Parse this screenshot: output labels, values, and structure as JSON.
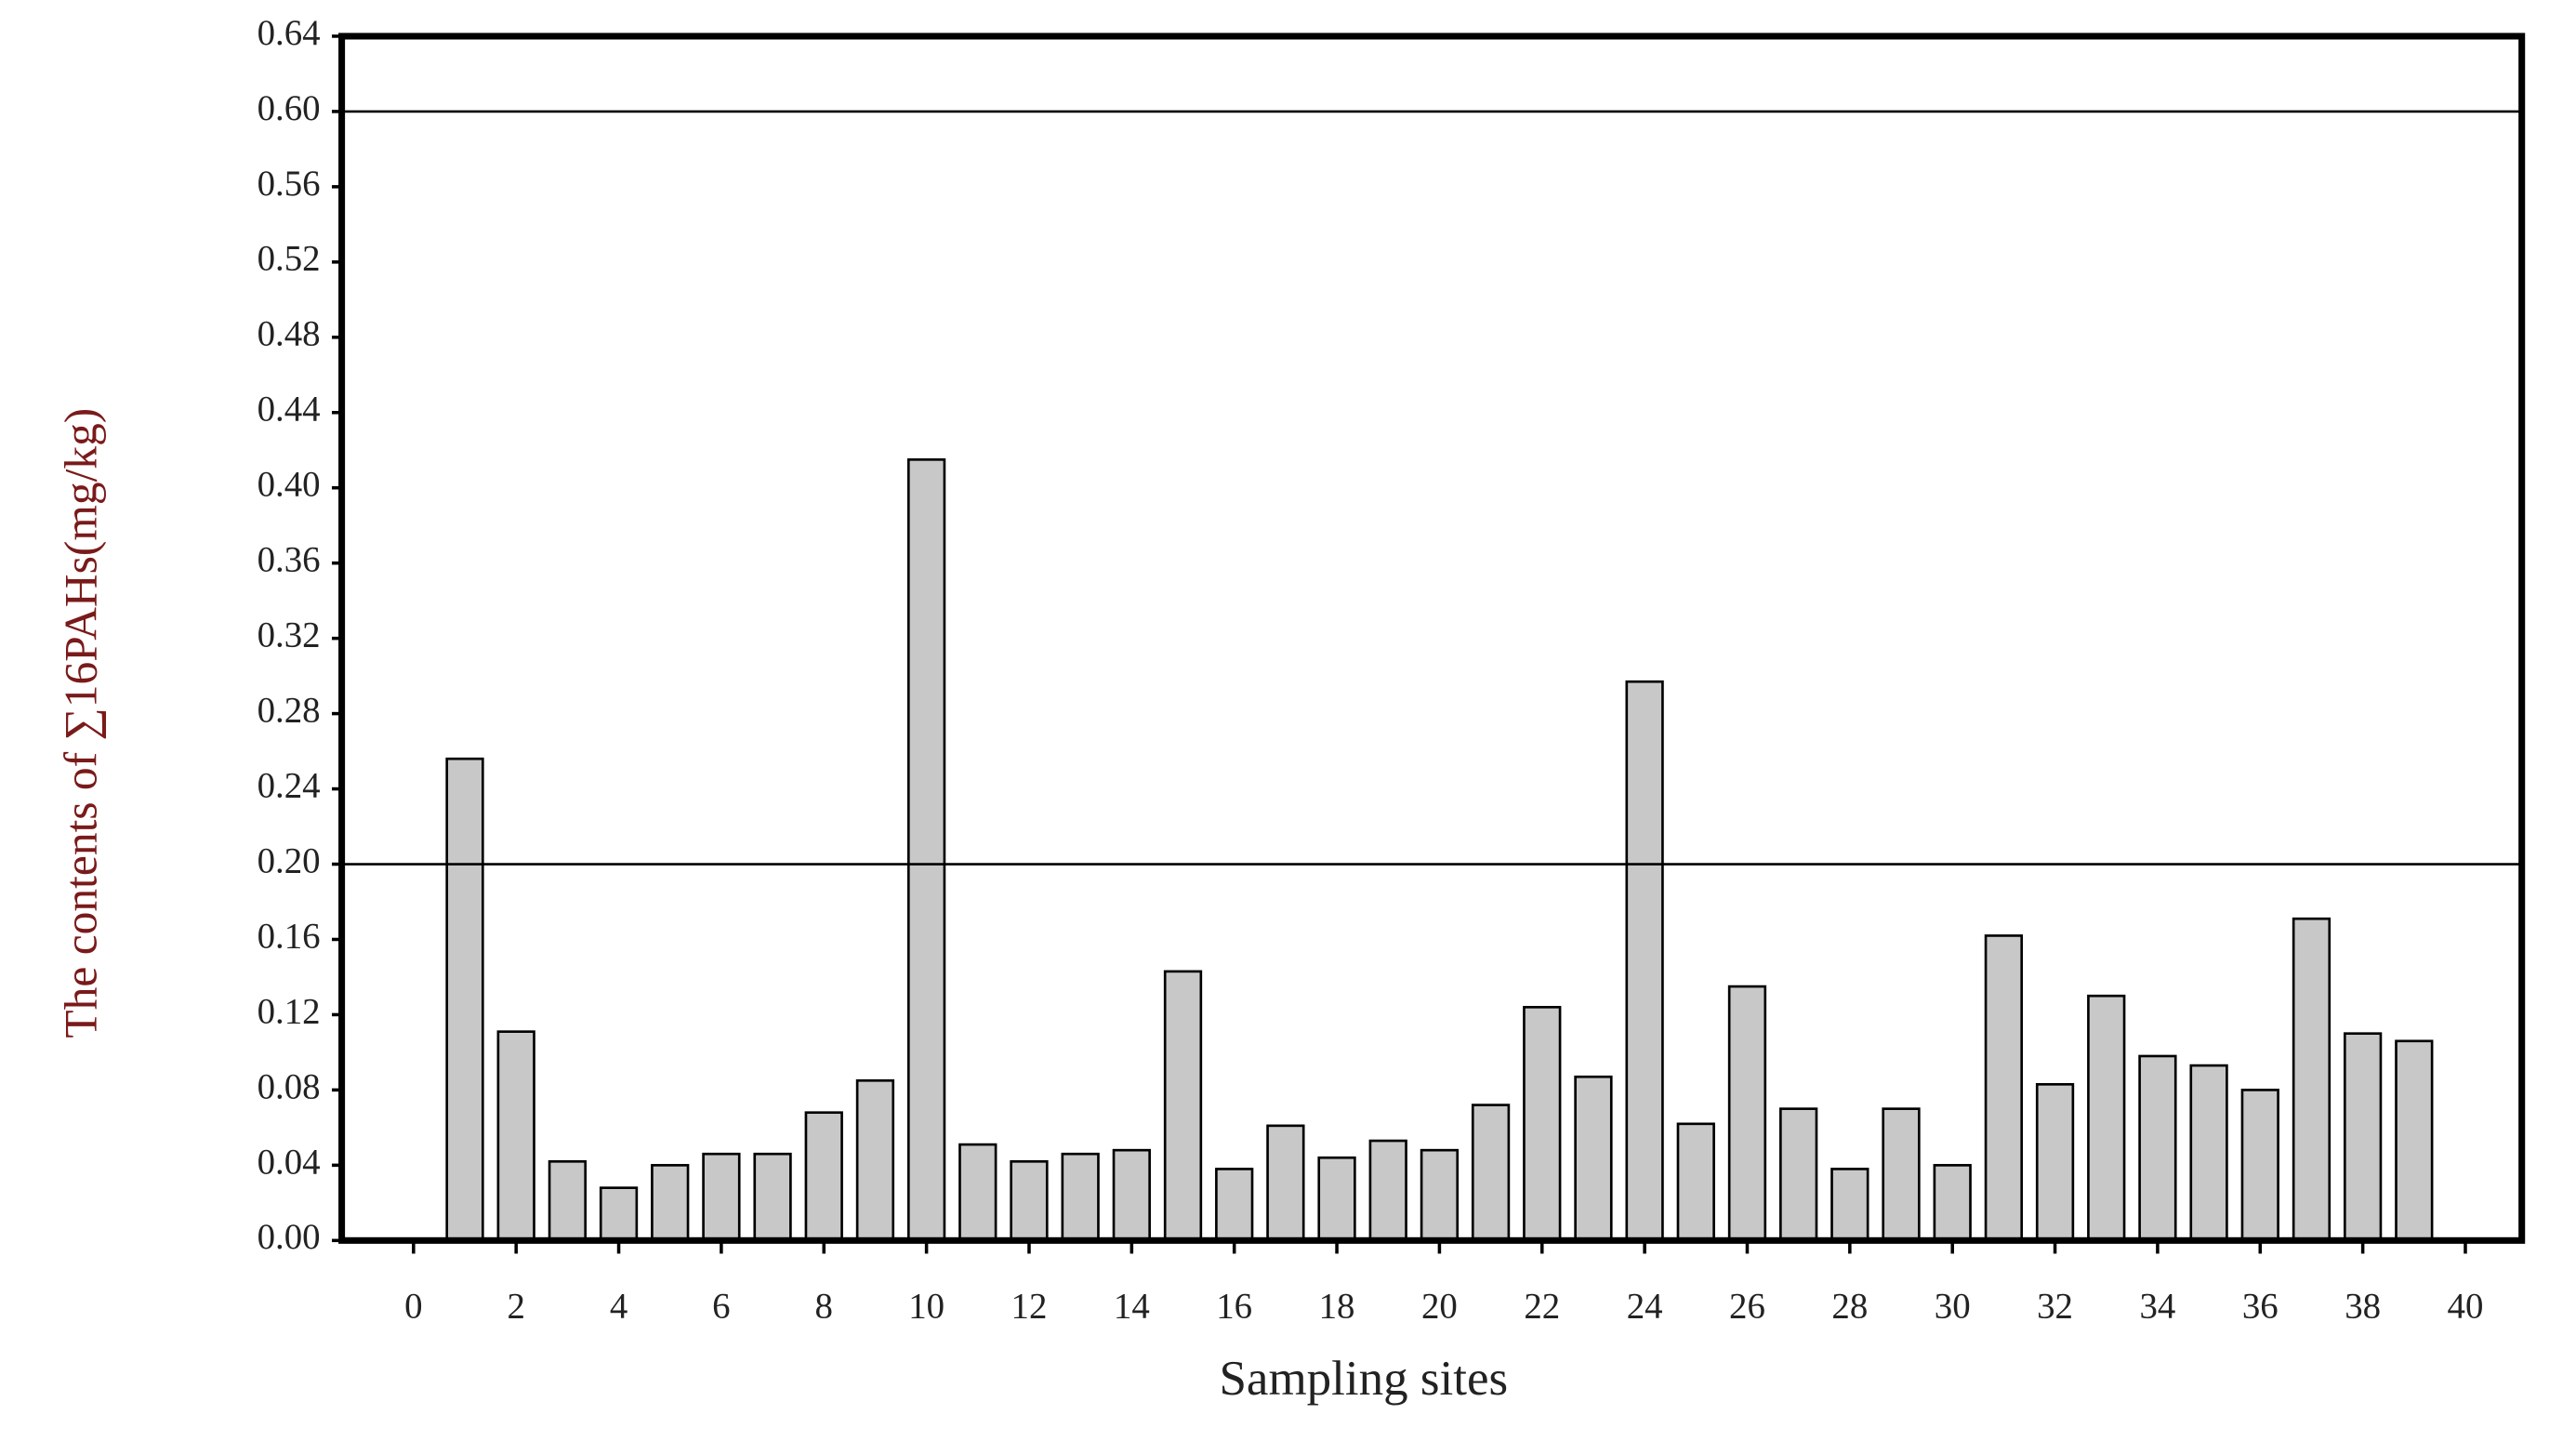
{
  "chart_data": {
    "type": "bar",
    "x_label": "Sampling sites",
    "y_label": "The contents of ∑16PAHs(mg/kg)",
    "x": [
      1,
      2,
      3,
      4,
      5,
      6,
      7,
      8,
      9,
      10,
      11,
      12,
      13,
      14,
      15,
      16,
      17,
      18,
      19,
      20,
      21,
      22,
      23,
      24,
      25,
      26,
      27,
      28,
      29,
      30,
      31,
      32,
      33,
      34,
      35,
      36,
      37,
      38,
      39
    ],
    "values": [
      0.256,
      0.111,
      0.042,
      0.028,
      0.04,
      0.046,
      0.046,
      0.068,
      0.085,
      0.415,
      0.051,
      0.042,
      0.046,
      0.048,
      0.143,
      0.038,
      0.061,
      0.044,
      0.053,
      0.048,
      0.072,
      0.124,
      0.087,
      0.297,
      0.062,
      0.135,
      0.07,
      0.038,
      0.07,
      0.04,
      0.162,
      0.083,
      0.13,
      0.098,
      0.093,
      0.08,
      0.171,
      0.11,
      0.106
    ],
    "color": "#c8c8c8",
    "reference_lines": [
      0.2,
      0.6
    ],
    "xlim": [
      -1.4,
      41.1
    ],
    "xticks": [
      0,
      2,
      4,
      6,
      8,
      10,
      12,
      14,
      16,
      18,
      20,
      22,
      24,
      26,
      28,
      30,
      32,
      34,
      36,
      38,
      40
    ],
    "ylim": [
      0,
      0.64
    ],
    "yticks": [
      {
        "value": 0,
        "label": "0.00"
      },
      {
        "value": 0.04,
        "label": "0.04"
      },
      {
        "value": 0.08,
        "label": "0.08"
      },
      {
        "value": 0.12,
        "label": "0.12"
      },
      {
        "value": 0.16,
        "label": "0.16"
      },
      {
        "value": 0.2,
        "label": "0.20"
      },
      {
        "value": 0.24,
        "label": "0.24"
      },
      {
        "value": 0.28,
        "label": "0.28"
      },
      {
        "value": 0.32,
        "label": "0.32"
      },
      {
        "value": 0.36,
        "label": "0.36"
      },
      {
        "value": 0.4,
        "label": "0.40"
      },
      {
        "value": 0.44,
        "label": "0.44"
      },
      {
        "value": 0.48,
        "label": "0.48"
      },
      {
        "value": 0.52,
        "label": "0.52"
      },
      {
        "value": 0.56,
        "label": "0.56"
      },
      {
        "value": 0.6,
        "label": "0.60"
      },
      {
        "value": 0.64,
        "label": "0.64"
      }
    ]
  }
}
